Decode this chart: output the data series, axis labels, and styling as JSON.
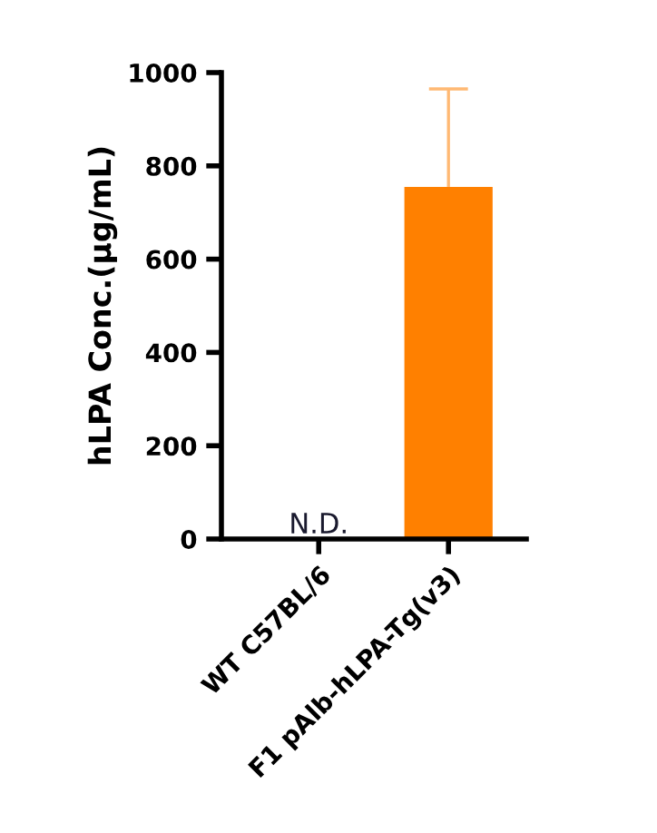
{
  "chart_data": {
    "type": "bar",
    "ylabel": "hLPA Conc.(μg/mL)",
    "categories": [
      "WT C57BL/6",
      "F1 pAlb-hLPA-Tg(v3)"
    ],
    "series": [
      {
        "color": "#ff8000",
        "values": [
          null,
          755
        ],
        "errors": [
          null,
          [
            755,
            965
          ]
        ],
        "value_labels": [
          "N.D.",
          null
        ]
      }
    ],
    "ylim": [
      0,
      1000
    ],
    "yticks": [
      0,
      200,
      400,
      600,
      800,
      1000
    ],
    "grid": false,
    "legend": false
  }
}
